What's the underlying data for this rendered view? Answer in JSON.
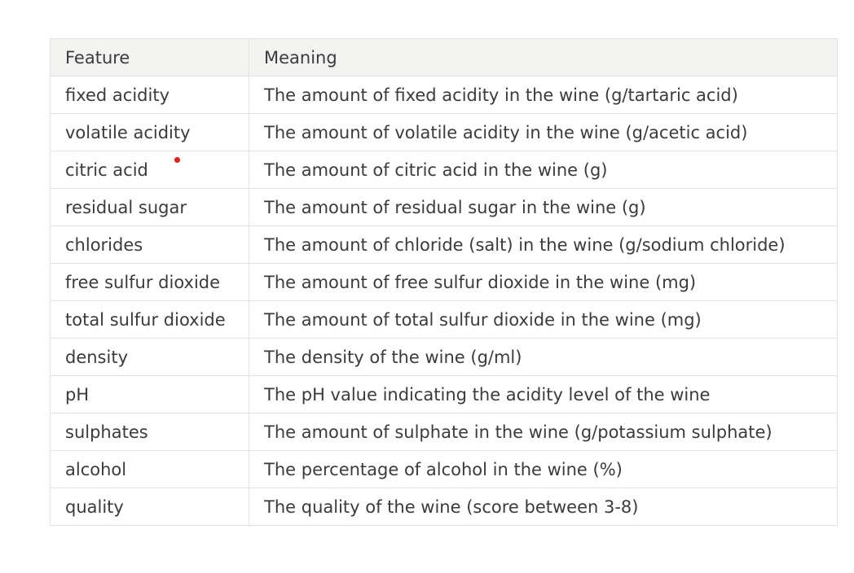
{
  "table": {
    "headers": [
      "Feature",
      "Meaning"
    ],
    "rows": [
      [
        "fixed acidity",
        "The amount of fixed acidity in the wine (g/tartaric acid)"
      ],
      [
        "volatile acidity",
        "The amount of volatile acidity in the wine (g/acetic acid)"
      ],
      [
        "citric acid",
        "The amount of citric acid in the wine (g)"
      ],
      [
        "residual sugar",
        "The amount of residual sugar in the wine (g)"
      ],
      [
        "chlorides",
        "The amount of chloride (salt) in the wine (g/sodium chloride)"
      ],
      [
        "free sulfur dioxide",
        "The amount of free sulfur dioxide in the wine (mg)"
      ],
      [
        "total sulfur dioxide",
        "The amount of total sulfur dioxide in the wine (mg)"
      ],
      [
        "density",
        "The density of the wine (g/ml)"
      ],
      [
        "pH",
        "The pH value indicating the acidity level of the wine"
      ],
      [
        "sulphates",
        "The amount of sulphate in the wine (g/potassium sulphate)"
      ],
      [
        "alcohol",
        "The percentage of alcohol in the wine (%)"
      ],
      [
        "quality",
        "The quality of the wine (score between 3-8)"
      ]
    ]
  },
  "colors": {
    "header_bg": "#f3f3f2",
    "border": "#e3e3e3",
    "text": "#3b3b3b",
    "cursor_dot": "#e0201b"
  }
}
